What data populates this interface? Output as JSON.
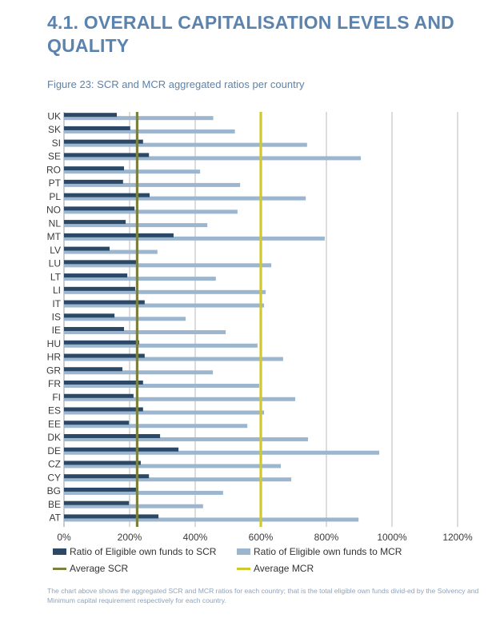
{
  "page": {
    "heading": "4.1.   OVERALL CAPITALISATION LEVELS AND QUALITY",
    "figure_caption": "Figure 23: SCR and MCR aggregated ratios per country",
    "footnote": "The chart above shows the aggregated SCR and MCR ratios for each country; that is the total eligible own funds divid-ed by the Solvency and Minimum capital requirement respectively for each country."
  },
  "colors": {
    "title": "#5b83ad",
    "scr_bar": "#2b4867",
    "mcr_bar": "#9db6cf",
    "avg_scr": "#7a8040",
    "avg_mcr": "#cfc82e",
    "grid": "#b9b9b9"
  },
  "chart_data": {
    "type": "bar",
    "orientation": "horizontal",
    "title": "Figure 23: SCR and MCR aggregated ratios per country",
    "xlabel": "",
    "ylabel": "",
    "xlim": [
      0,
      1200
    ],
    "x_ticks": [
      "0%",
      "200%",
      "400%",
      "600%",
      "800%",
      "1000%",
      "1200%"
    ],
    "x_tick_values": [
      0,
      200,
      400,
      600,
      800,
      1000,
      1200
    ],
    "grid": "vertical",
    "legend_position": "bottom",
    "categories": [
      "UK",
      "SK",
      "SI",
      "SE",
      "RO",
      "PT",
      "PL",
      "NO",
      "NL",
      "MT",
      "LV",
      "LU",
      "LT",
      "LI",
      "IT",
      "IS",
      "IE",
      "HU",
      "HR",
      "GR",
      "FR",
      "FI",
      "ES",
      "EE",
      "DK",
      "DE",
      "CZ",
      "CY",
      "BG",
      "BE",
      "AT"
    ],
    "series": [
      {
        "name": "Ratio of Eligible own funds to SCR",
        "unit": "%",
        "values": [
          161,
          202,
          241,
          259,
          183,
          180,
          261,
          215,
          188,
          334,
          139,
          220,
          193,
          217,
          246,
          154,
          183,
          229,
          246,
          178,
          241,
          212,
          241,
          198,
          293,
          349,
          234,
          259,
          220,
          198,
          288
        ]
      },
      {
        "name": "Ratio of Eligible own funds to MCR",
        "unit": "%",
        "values": [
          455,
          521,
          741,
          905,
          415,
          537,
          737,
          529,
          437,
          795,
          285,
          632,
          463,
          615,
          610,
          371,
          493,
          590,
          668,
          454,
          595,
          705,
          610,
          559,
          744,
          961,
          661,
          693,
          485,
          424,
          898
        ]
      }
    ],
    "reference_lines": [
      {
        "name": "Average SCR",
        "value": 223
      },
      {
        "name": "Average MCR",
        "value": 600
      }
    ]
  },
  "legend": {
    "items": [
      {
        "label": "Ratio of Eligible own funds to SCR",
        "kind": "box"
      },
      {
        "label": "Ratio of Eligible own funds to MCR",
        "kind": "box"
      },
      {
        "label": "Average SCR",
        "kind": "line"
      },
      {
        "label": "Average MCR",
        "kind": "line"
      }
    ]
  }
}
